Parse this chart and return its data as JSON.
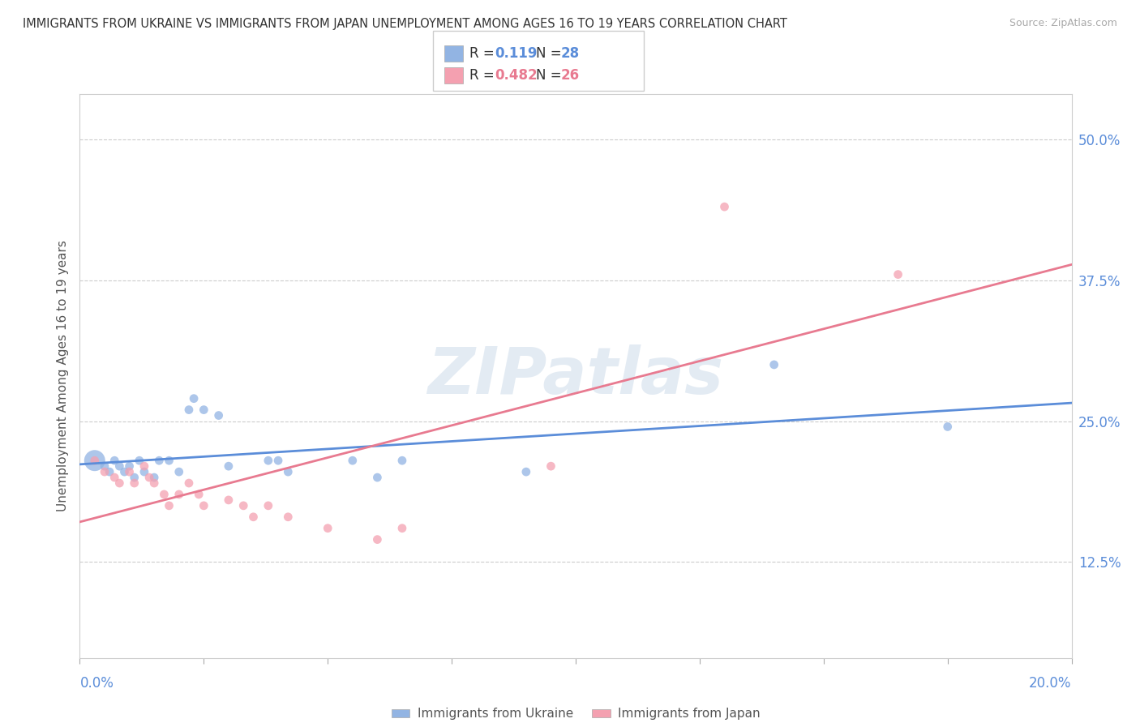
{
  "title": "IMMIGRANTS FROM UKRAINE VS IMMIGRANTS FROM JAPAN UNEMPLOYMENT AMONG AGES 16 TO 19 YEARS CORRELATION CHART",
  "source": "Source: ZipAtlas.com",
  "ylabel": "Unemployment Among Ages 16 to 19 years",
  "ytick_values": [
    0.125,
    0.25,
    0.375,
    0.5
  ],
  "xmin": 0.0,
  "xmax": 0.2,
  "ymin": 0.04,
  "ymax": 0.54,
  "watermark": "ZIPatlas",
  "ukraine_R": 0.119,
  "ukraine_N": 28,
  "japan_R": 0.482,
  "japan_N": 26,
  "ukraine_color": "#92b4e3",
  "japan_color": "#f4a0b0",
  "ukraine_line_color": "#5b8dd9",
  "japan_line_color": "#e87a90",
  "background_color": "#ffffff",
  "grid_color": "#cccccc",
  "ukraine_scatter": [
    [
      0.003,
      0.215
    ],
    [
      0.005,
      0.21
    ],
    [
      0.006,
      0.205
    ],
    [
      0.007,
      0.215
    ],
    [
      0.008,
      0.21
    ],
    [
      0.009,
      0.205
    ],
    [
      0.01,
      0.21
    ],
    [
      0.011,
      0.2
    ],
    [
      0.012,
      0.215
    ],
    [
      0.013,
      0.205
    ],
    [
      0.015,
      0.2
    ],
    [
      0.016,
      0.215
    ],
    [
      0.018,
      0.215
    ],
    [
      0.02,
      0.205
    ],
    [
      0.022,
      0.26
    ],
    [
      0.023,
      0.27
    ],
    [
      0.025,
      0.26
    ],
    [
      0.028,
      0.255
    ],
    [
      0.03,
      0.21
    ],
    [
      0.038,
      0.215
    ],
    [
      0.04,
      0.215
    ],
    [
      0.042,
      0.205
    ],
    [
      0.055,
      0.215
    ],
    [
      0.06,
      0.2
    ],
    [
      0.065,
      0.215
    ],
    [
      0.09,
      0.205
    ],
    [
      0.14,
      0.3
    ],
    [
      0.175,
      0.245
    ]
  ],
  "ukraine_scatter_sizes": [
    60,
    60,
    60,
    60,
    60,
    60,
    60,
    60,
    60,
    60,
    60,
    60,
    60,
    60,
    60,
    60,
    60,
    60,
    60,
    60,
    60,
    60,
    60,
    60,
    60,
    60,
    60,
    60
  ],
  "ukraine_big_idx": 0,
  "japan_scatter": [
    [
      0.003,
      0.215
    ],
    [
      0.005,
      0.205
    ],
    [
      0.007,
      0.2
    ],
    [
      0.008,
      0.195
    ],
    [
      0.01,
      0.205
    ],
    [
      0.011,
      0.195
    ],
    [
      0.013,
      0.21
    ],
    [
      0.014,
      0.2
    ],
    [
      0.015,
      0.195
    ],
    [
      0.017,
      0.185
    ],
    [
      0.018,
      0.175
    ],
    [
      0.02,
      0.185
    ],
    [
      0.022,
      0.195
    ],
    [
      0.024,
      0.185
    ],
    [
      0.025,
      0.175
    ],
    [
      0.03,
      0.18
    ],
    [
      0.033,
      0.175
    ],
    [
      0.035,
      0.165
    ],
    [
      0.038,
      0.175
    ],
    [
      0.042,
      0.165
    ],
    [
      0.05,
      0.155
    ],
    [
      0.06,
      0.145
    ],
    [
      0.065,
      0.155
    ],
    [
      0.095,
      0.21
    ],
    [
      0.13,
      0.44
    ],
    [
      0.165,
      0.38
    ]
  ],
  "japan_scatter_sizes": [
    60,
    60,
    60,
    60,
    60,
    60,
    60,
    60,
    60,
    60,
    60,
    60,
    60,
    60,
    60,
    60,
    60,
    60,
    60,
    60,
    60,
    60,
    60,
    60,
    60,
    60
  ]
}
